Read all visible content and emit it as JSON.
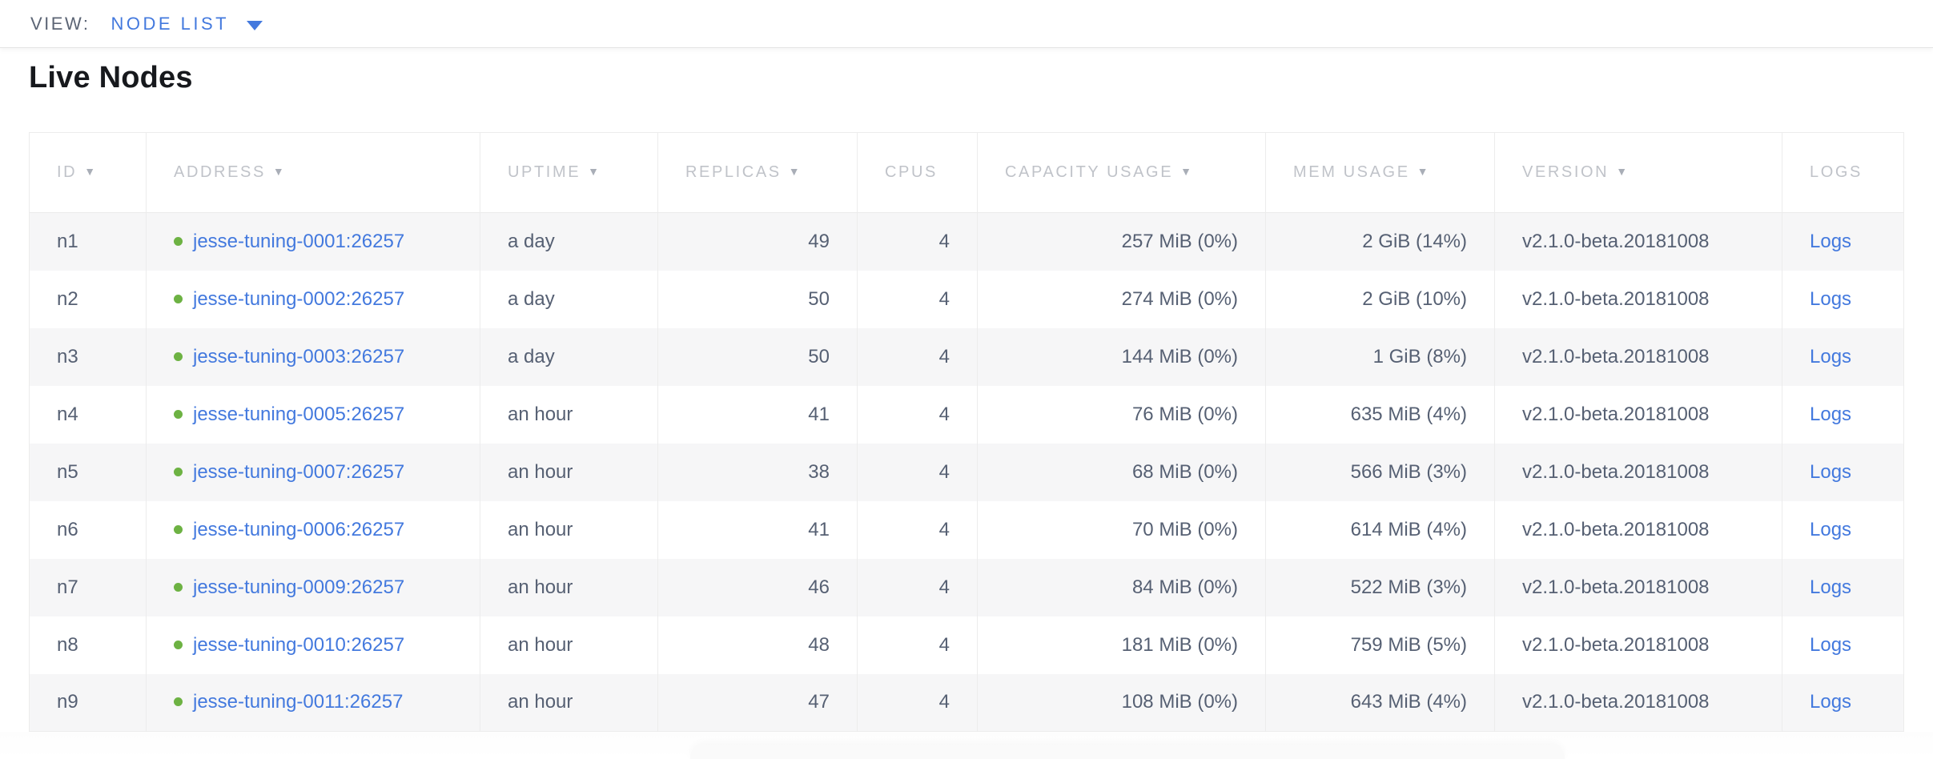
{
  "view_bar": {
    "label": "VIEW:",
    "selected": "NODE LIST"
  },
  "page": {
    "title": "Live Nodes"
  },
  "icons": {
    "sort_desc": "▼"
  },
  "colors": {
    "accent_blue": "#4379de",
    "status_green": "#6db243",
    "header_gray": "#c0c3c9",
    "cell_text": "#566073",
    "row_stripe": "#f6f6f7",
    "border": "#ececec"
  },
  "table": {
    "columns": [
      {
        "key": "id",
        "label": "ID",
        "sortable": true,
        "align": "left"
      },
      {
        "key": "address",
        "label": "ADDRESS",
        "sortable": true,
        "align": "left"
      },
      {
        "key": "uptime",
        "label": "UPTIME",
        "sortable": true,
        "align": "left"
      },
      {
        "key": "replicas",
        "label": "REPLICAS",
        "sortable": true,
        "align": "right"
      },
      {
        "key": "cpus",
        "label": "CPUS",
        "sortable": false,
        "align": "right"
      },
      {
        "key": "capacity",
        "label": "CAPACITY USAGE",
        "sortable": true,
        "align": "right"
      },
      {
        "key": "mem",
        "label": "MEM USAGE",
        "sortable": true,
        "align": "right"
      },
      {
        "key": "version",
        "label": "VERSION",
        "sortable": true,
        "align": "left"
      },
      {
        "key": "logs",
        "label": "LOGS",
        "sortable": false,
        "align": "left"
      }
    ],
    "rows": [
      {
        "id": "n1",
        "address": "jesse-tuning-0001:26257",
        "uptime": "a day",
        "replicas": "49",
        "cpus": "4",
        "capacity": "257 MiB (0%)",
        "mem": "2 GiB (14%)",
        "version": "v2.1.0-beta.20181008",
        "logs": "Logs"
      },
      {
        "id": "n2",
        "address": "jesse-tuning-0002:26257",
        "uptime": "a day",
        "replicas": "50",
        "cpus": "4",
        "capacity": "274 MiB (0%)",
        "mem": "2 GiB (10%)",
        "version": "v2.1.0-beta.20181008",
        "logs": "Logs"
      },
      {
        "id": "n3",
        "address": "jesse-tuning-0003:26257",
        "uptime": "a day",
        "replicas": "50",
        "cpus": "4",
        "capacity": "144 MiB (0%)",
        "mem": "1 GiB (8%)",
        "version": "v2.1.0-beta.20181008",
        "logs": "Logs"
      },
      {
        "id": "n4",
        "address": "jesse-tuning-0005:26257",
        "uptime": "an hour",
        "replicas": "41",
        "cpus": "4",
        "capacity": "76 MiB (0%)",
        "mem": "635 MiB (4%)",
        "version": "v2.1.0-beta.20181008",
        "logs": "Logs"
      },
      {
        "id": "n5",
        "address": "jesse-tuning-0007:26257",
        "uptime": "an hour",
        "replicas": "38",
        "cpus": "4",
        "capacity": "68 MiB (0%)",
        "mem": "566 MiB (3%)",
        "version": "v2.1.0-beta.20181008",
        "logs": "Logs"
      },
      {
        "id": "n6",
        "address": "jesse-tuning-0006:26257",
        "uptime": "an hour",
        "replicas": "41",
        "cpus": "4",
        "capacity": "70 MiB (0%)",
        "mem": "614 MiB (4%)",
        "version": "v2.1.0-beta.20181008",
        "logs": "Logs"
      },
      {
        "id": "n7",
        "address": "jesse-tuning-0009:26257",
        "uptime": "an hour",
        "replicas": "46",
        "cpus": "4",
        "capacity": "84 MiB (0%)",
        "mem": "522 MiB (3%)",
        "version": "v2.1.0-beta.20181008",
        "logs": "Logs"
      },
      {
        "id": "n8",
        "address": "jesse-tuning-0010:26257",
        "uptime": "an hour",
        "replicas": "48",
        "cpus": "4",
        "capacity": "181 MiB (0%)",
        "mem": "759 MiB (5%)",
        "version": "v2.1.0-beta.20181008",
        "logs": "Logs"
      },
      {
        "id": "n9",
        "address": "jesse-tuning-0011:26257",
        "uptime": "an hour",
        "replicas": "47",
        "cpus": "4",
        "capacity": "108 MiB (0%)",
        "mem": "643 MiB (4%)",
        "version": "v2.1.0-beta.20181008",
        "logs": "Logs"
      }
    ]
  }
}
